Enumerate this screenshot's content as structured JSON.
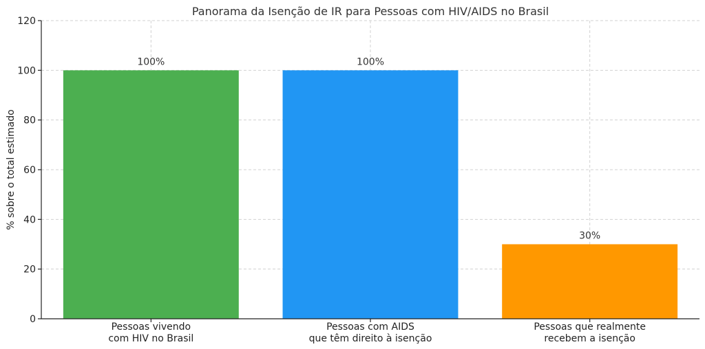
{
  "chart_data": {
    "type": "bar",
    "title": "Panorama da Isenção de IR para Pessoas com HIV/AIDS no Brasil",
    "xlabel": "",
    "ylabel": "% sobre o total estimado",
    "ylim": [
      0,
      120
    ],
    "yticks": [
      0,
      20,
      40,
      60,
      80,
      100,
      120
    ],
    "grid": true,
    "categories": [
      [
        "Pessoas vivendo",
        "com HIV no Brasil"
      ],
      [
        "Pessoas com AIDS",
        "que têm direito à isenção"
      ],
      [
        "Pessoas que realmente",
        "recebem a isenção"
      ]
    ],
    "values": [
      100,
      100,
      30
    ],
    "data_labels": [
      "100%",
      "100%",
      "30%"
    ],
    "colors": [
      "#4caf50",
      "#2196f3",
      "#ff9800"
    ]
  }
}
